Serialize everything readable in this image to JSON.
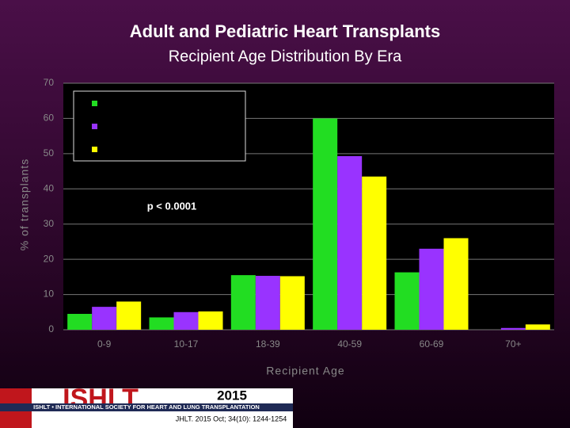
{
  "chart_data": {
    "type": "bar",
    "title": "Adult and Pediatric Heart Transplants",
    "subtitle": "Recipient Age Distribution By Era",
    "y_label": "% of transplants",
    "x_label": "Recipient Age",
    "annotation": "p < 0.0001",
    "categories": [
      "0-9",
      "10-17",
      "18-39",
      "40-59",
      "60-69",
      "70+"
    ],
    "series": [
      {
        "color": "#22dd22",
        "values": [
          4.5,
          3.5,
          15.5,
          60,
          16.3,
          0
        ]
      },
      {
        "color": "#9933ff",
        "values": [
          6.5,
          5,
          15.3,
          49.3,
          23,
          0.5
        ]
      },
      {
        "color": "#ffff00",
        "values": [
          8,
          5.2,
          15.2,
          43.5,
          26,
          1.5
        ]
      }
    ],
    "ylim": [
      0,
      70
    ],
    "yticks": [
      0,
      10,
      20,
      30,
      40,
      50,
      60,
      70
    ],
    "grid": true
  },
  "footer": {
    "logo": "ISHLT",
    "society": "ISHLT • INTERNATIONAL SOCIETY FOR HEART AND LUNG TRANSPLANTATION",
    "year": "2015",
    "citation": "JHLT. 2015 Oct; 34(10): 1244-1254"
  }
}
